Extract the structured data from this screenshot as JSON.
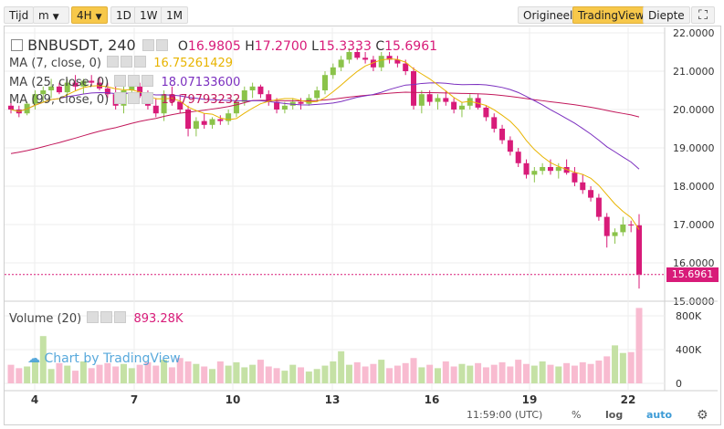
{
  "toolbar": {
    "items": [
      "Tijd",
      "m",
      "4H",
      "1D",
      "1W",
      "1M"
    ],
    "right": [
      "Origineel",
      "TradingView",
      "Diepte"
    ]
  },
  "legend": {
    "symbol": "BNBUSDT, 240",
    "ohlc": {
      "o_label": "O",
      "o": "16.9805",
      "h_label": "H",
      "h": "17.2700",
      "l_label": "L",
      "l": "15.3333",
      "c_label": "C",
      "c": "15.6961"
    },
    "ma7": {
      "label": "MA (7, close, 0)",
      "value": "16.75261429",
      "color": "#e8b400"
    },
    "ma25": {
      "label": "MA (25, close, 0)",
      "value": "18.07133600",
      "color": "#7b2fbf"
    },
    "ma99": {
      "label": "MA (99, close, 0)",
      "value": "19.79793232",
      "color": "#c2185b"
    },
    "volume": {
      "label": "Volume (20)",
      "value": "893.28K"
    }
  },
  "watermark": "Chart by TradingView",
  "price_tag": "15.6961",
  "bottom": {
    "time": "11:59:00 (UTC)",
    "pct": "%",
    "log": "log",
    "auto": "auto"
  },
  "colors": {
    "up": "#8bc34a",
    "down": "#d81b79",
    "grid": "#eeeeee",
    "vol_up": "#c5e1a5",
    "vol_down": "#f8bbd0"
  },
  "chart_data": {
    "type": "candlestick",
    "x_ticks": [
      "4",
      "7",
      "10",
      "13",
      "16",
      "19",
      "22"
    ],
    "y_ticks": [
      "22.0000",
      "21.0000",
      "20.0000",
      "19.0000",
      "18.0000",
      "17.0000",
      "16.0000",
      "15.0000"
    ],
    "ylim": [
      15.0,
      22.0
    ],
    "vol_ticks": [
      "800K",
      "400K",
      "0"
    ],
    "vol_ylim": [
      0,
      900000
    ],
    "candles": [
      [
        20.1,
        20.3,
        19.9,
        20.0
      ],
      [
        20.0,
        20.1,
        19.8,
        19.9
      ],
      [
        19.9,
        20.2,
        19.85,
        20.15
      ],
      [
        20.15,
        20.5,
        20.0,
        20.4
      ],
      [
        20.4,
        20.6,
        20.2,
        20.5
      ],
      [
        20.5,
        20.8,
        20.3,
        20.6
      ],
      [
        20.6,
        20.7,
        20.4,
        20.45
      ],
      [
        20.45,
        20.8,
        20.4,
        20.7
      ],
      [
        20.7,
        20.9,
        20.5,
        20.6
      ],
      [
        20.6,
        20.8,
        20.4,
        20.75
      ],
      [
        20.75,
        20.9,
        20.6,
        20.7
      ],
      [
        20.7,
        20.85,
        20.5,
        20.55
      ],
      [
        20.55,
        20.7,
        20.3,
        20.4
      ],
      [
        20.4,
        20.6,
        20.0,
        20.1
      ],
      [
        20.1,
        20.6,
        19.9,
        20.5
      ],
      [
        20.5,
        20.8,
        20.3,
        20.6
      ],
      [
        20.6,
        20.7,
        20.3,
        20.35
      ],
      [
        20.35,
        20.5,
        20.0,
        20.1
      ],
      [
        20.1,
        20.3,
        19.8,
        19.9
      ],
      [
        19.9,
        20.5,
        19.7,
        20.4
      ],
      [
        20.4,
        20.6,
        20.1,
        20.2
      ],
      [
        20.2,
        20.4,
        19.9,
        20.0
      ],
      [
        20.0,
        20.1,
        19.3,
        19.5
      ],
      [
        19.5,
        19.8,
        19.3,
        19.7
      ],
      [
        19.7,
        19.9,
        19.5,
        19.6
      ],
      [
        19.6,
        19.8,
        19.5,
        19.75
      ],
      [
        19.75,
        19.85,
        19.6,
        19.7
      ],
      [
        19.7,
        20.0,
        19.6,
        19.9
      ],
      [
        19.9,
        20.3,
        19.8,
        20.2
      ],
      [
        20.2,
        20.6,
        20.1,
        20.5
      ],
      [
        20.5,
        20.7,
        20.3,
        20.6
      ],
      [
        20.6,
        20.65,
        20.3,
        20.4
      ],
      [
        20.4,
        20.5,
        20.1,
        20.2
      ],
      [
        20.2,
        20.3,
        19.9,
        20.0
      ],
      [
        20.0,
        20.2,
        19.9,
        20.1
      ],
      [
        20.1,
        20.3,
        20.0,
        20.2
      ],
      [
        20.2,
        20.3,
        20.0,
        20.15
      ],
      [
        20.15,
        20.4,
        20.1,
        20.3
      ],
      [
        20.3,
        20.6,
        20.2,
        20.5
      ],
      [
        20.5,
        21.0,
        20.4,
        20.9
      ],
      [
        20.9,
        21.2,
        20.8,
        21.1
      ],
      [
        21.1,
        21.4,
        21.0,
        21.3
      ],
      [
        21.3,
        21.6,
        21.2,
        21.5
      ],
      [
        21.5,
        21.6,
        21.3,
        21.35
      ],
      [
        21.35,
        21.5,
        21.2,
        21.3
      ],
      [
        21.3,
        21.4,
        21.0,
        21.1
      ],
      [
        21.1,
        21.5,
        21.0,
        21.4
      ],
      [
        21.4,
        21.5,
        21.2,
        21.3
      ],
      [
        21.3,
        21.4,
        21.1,
        21.2
      ],
      [
        21.2,
        21.3,
        20.9,
        21.0
      ],
      [
        21.0,
        21.1,
        20.0,
        20.1
      ],
      [
        20.1,
        20.5,
        19.9,
        20.4
      ],
      [
        20.4,
        20.5,
        20.1,
        20.2
      ],
      [
        20.2,
        20.4,
        20.0,
        20.3
      ],
      [
        20.3,
        20.5,
        20.1,
        20.2
      ],
      [
        20.2,
        20.3,
        19.9,
        20.0
      ],
      [
        20.0,
        20.2,
        19.8,
        20.1
      ],
      [
        20.1,
        20.4,
        20.0,
        20.3
      ],
      [
        20.3,
        20.4,
        20.0,
        20.05
      ],
      [
        20.05,
        20.1,
        19.7,
        19.8
      ],
      [
        19.8,
        19.9,
        19.4,
        19.5
      ],
      [
        19.5,
        19.6,
        19.1,
        19.2
      ],
      [
        19.2,
        19.3,
        18.8,
        18.9
      ],
      [
        18.9,
        19.0,
        18.5,
        18.6
      ],
      [
        18.6,
        18.7,
        18.2,
        18.3
      ],
      [
        18.3,
        18.5,
        18.1,
        18.4
      ],
      [
        18.4,
        18.6,
        18.3,
        18.5
      ],
      [
        18.5,
        18.7,
        18.3,
        18.4
      ],
      [
        18.4,
        18.6,
        18.2,
        18.5
      ],
      [
        18.5,
        18.7,
        18.3,
        18.35
      ],
      [
        18.35,
        18.5,
        18.0,
        18.1
      ],
      [
        18.1,
        18.3,
        17.8,
        17.9
      ],
      [
        17.9,
        18.0,
        17.6,
        17.7
      ],
      [
        17.7,
        17.8,
        17.1,
        17.2
      ],
      [
        17.2,
        17.3,
        16.4,
        16.7
      ],
      [
        16.7,
        16.9,
        16.5,
        16.8
      ],
      [
        16.8,
        17.2,
        16.7,
        17.0
      ],
      [
        17.0,
        17.1,
        16.8,
        16.98
      ],
      [
        16.98,
        17.27,
        15.33,
        15.7
      ]
    ],
    "volumes": [
      220000,
      180000,
      200000,
      260000,
      560000,
      170000,
      240000,
      210000,
      150000,
      260000,
      180000,
      220000,
      240000,
      200000,
      230000,
      180000,
      220000,
      250000,
      210000,
      280000,
      190000,
      300000,
      260000,
      230000,
      200000,
      170000,
      260000,
      210000,
      250000,
      190000,
      220000,
      280000,
      200000,
      180000,
      150000,
      220000,
      190000,
      140000,
      170000,
      210000,
      260000,
      380000,
      220000,
      250000,
      200000,
      230000,
      280000,
      180000,
      210000,
      240000,
      300000,
      190000,
      220000,
      180000,
      260000,
      200000,
      230000,
      210000,
      240000,
      190000,
      220000,
      250000,
      200000,
      280000,
      230000,
      210000,
      260000,
      220000,
      200000,
      240000,
      210000,
      250000,
      230000,
      270000,
      320000,
      450000,
      360000,
      370000,
      893280
    ]
  }
}
